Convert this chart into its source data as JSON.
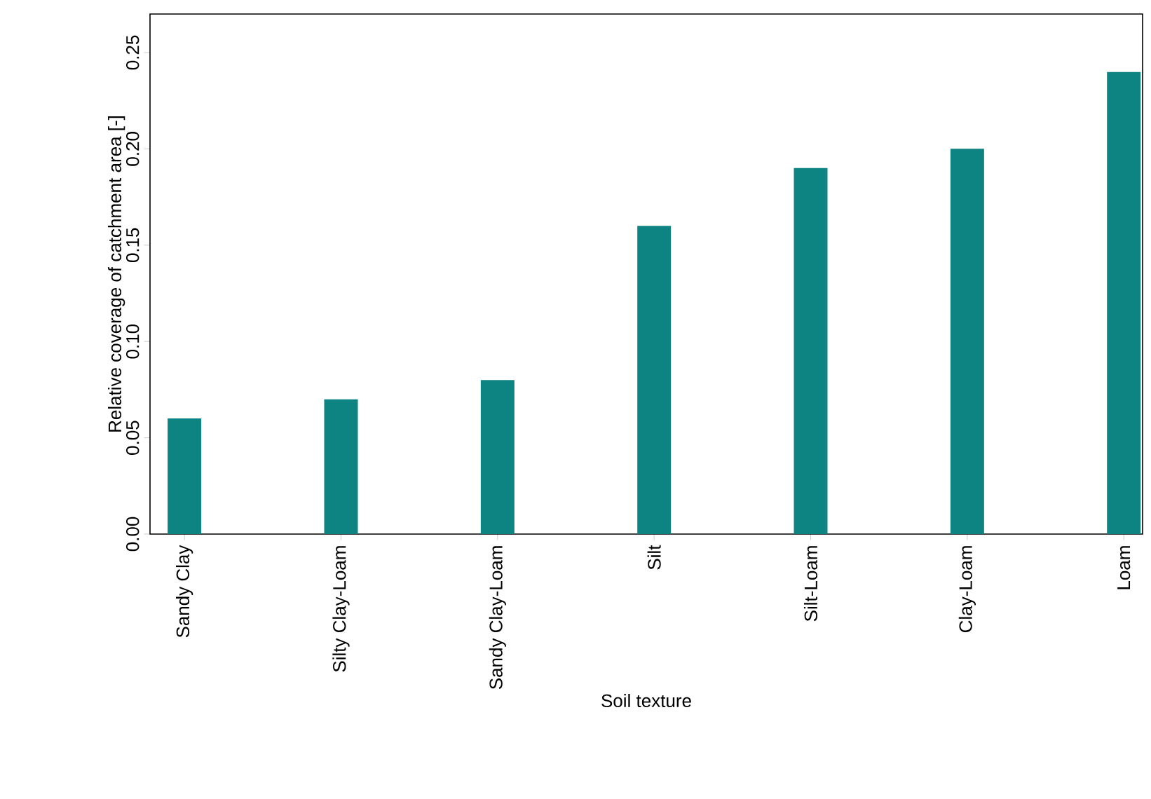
{
  "chart_data": {
    "type": "bar",
    "xlabel": "Soil texture",
    "ylabel": "Relative coverage of catchment area [-]",
    "categories": [
      "Sandy Clay",
      "Silty Clay-Loam",
      "Sandy Clay-Loam",
      "Silt",
      "Silt-Loam",
      "Clay-Loam",
      "Loam"
    ],
    "values": [
      0.06,
      0.07,
      0.08,
      0.16,
      0.19,
      0.2,
      0.24
    ],
    "color": "#0e8482",
    "ylim": [
      0,
      0.27
    ],
    "yticks": [
      {
        "value": 0,
        "label": "0.00"
      },
      {
        "value": 0.05,
        "label": "0.05"
      },
      {
        "value": 0.1,
        "label": "0.10"
      },
      {
        "value": 0.15,
        "label": "0.15"
      },
      {
        "value": 0.2,
        "label": "0.20"
      },
      {
        "value": 0.25,
        "label": "0.25"
      }
    ],
    "grid": false
  }
}
